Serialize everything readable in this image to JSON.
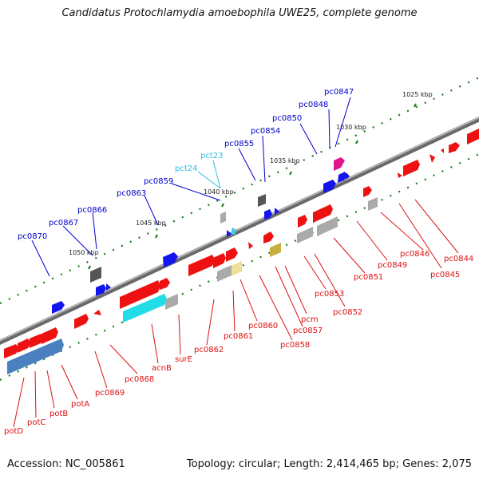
{
  "title": "Candidatus Protochlamydia amoebophila UWE25, complete genome",
  "accession": "Accession: NC_005861",
  "summary": "Topology: circular; Length: 2,414,465 bp; Genes: 2,075",
  "colors": {
    "backbone": "#8a8a8a",
    "forward_gene": "#1414ee",
    "reverse_gene": "#ee1111",
    "gene_label": "#0000cc",
    "trna": "#44ccee",
    "other_gene": "#aaaaaa",
    "tick": "#1a7a1a"
  },
  "kbp_markers": [
    "1025 kbp",
    "1030 kbp",
    "1035 kbp",
    "1040 kbp",
    "1045 kbp",
    "1050 kbp"
  ],
  "top_labels": [
    "pc0847",
    "pc0848",
    "pc0850",
    "pc0854",
    "pc0855",
    "pct23",
    "pct24",
    "pc0859",
    "pc0863",
    "pc0866",
    "pc0867",
    "pc0870"
  ],
  "bottom_labels": [
    "pc0844",
    "pc0845",
    "pc0846",
    "pc0849",
    "pc0851",
    "pc0852",
    "pc0853",
    "pcm",
    "pc0857",
    "pc0858",
    "pc0860",
    "pc0861",
    "pc0862",
    "surE",
    "acnB",
    "pc0868",
    "pc0869",
    "potA",
    "potB",
    "potC",
    "potD"
  ]
}
